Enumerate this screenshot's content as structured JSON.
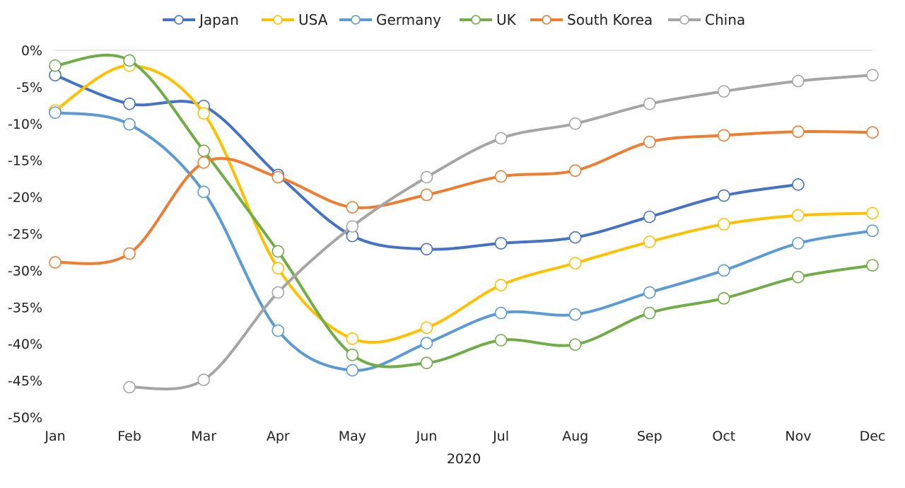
{
  "chart_data": {
    "type": "line",
    "title": "",
    "xlabel": "2020",
    "ylabel": "",
    "categories": [
      "Jan",
      "Feb",
      "Mar",
      "Apr",
      "May",
      "Jun",
      "Jul",
      "Aug",
      "Sep",
      "Oct",
      "Nov",
      "Dec"
    ],
    "ylim": [
      -50,
      0
    ],
    "yticks": [
      0,
      -5,
      -10,
      -15,
      -20,
      -25,
      -30,
      -35,
      -40,
      -45,
      -50
    ],
    "ytick_labels": [
      "0%",
      "-5%",
      "-10%",
      "-15%",
      "-20%",
      "-25%",
      "-30%",
      "-35%",
      "-40%",
      "-45%",
      "-50%"
    ],
    "grid": false,
    "legend_position": "top",
    "series": [
      {
        "name": "Japan",
        "color": "#4472C4",
        "values": [
          -3.4,
          -7.3,
          -7.6,
          -17.0,
          -25.3,
          -27.1,
          -26.3,
          -25.5,
          -22.7,
          -19.8,
          -18.3,
          null
        ]
      },
      {
        "name": "USA",
        "color": "#FFC000",
        "values": [
          -8.2,
          -2.1,
          -8.6,
          -29.7,
          -39.3,
          -37.8,
          -32.0,
          -29.0,
          -26.1,
          -23.7,
          -22.5,
          -22.2
        ]
      },
      {
        "name": "Germany",
        "color": "#5B9BD5",
        "values": [
          -8.5,
          -10.1,
          -19.3,
          -38.2,
          -43.6,
          -39.9,
          -35.8,
          -36.0,
          -33.0,
          -30.0,
          -26.3,
          -24.6
        ]
      },
      {
        "name": "UK",
        "color": "#70AD47",
        "values": [
          -2.1,
          -1.4,
          -13.7,
          -27.4,
          -41.5,
          -42.6,
          -39.5,
          -40.1,
          -35.8,
          -33.8,
          -30.9,
          -29.3
        ]
      },
      {
        "name": "South Korea",
        "color": "#ED7D31",
        "values": [
          -28.9,
          -27.7,
          -15.3,
          -17.3,
          -21.4,
          -19.7,
          -17.2,
          -16.4,
          -12.5,
          -11.6,
          -11.1,
          -11.2
        ]
      },
      {
        "name": "China",
        "color": "#A5A5A5",
        "values": [
          null,
          -45.9,
          -44.9,
          -33.0,
          -24.0,
          -17.3,
          -12.0,
          -10.0,
          -7.3,
          -5.6,
          -4.2,
          -3.4
        ]
      }
    ]
  }
}
